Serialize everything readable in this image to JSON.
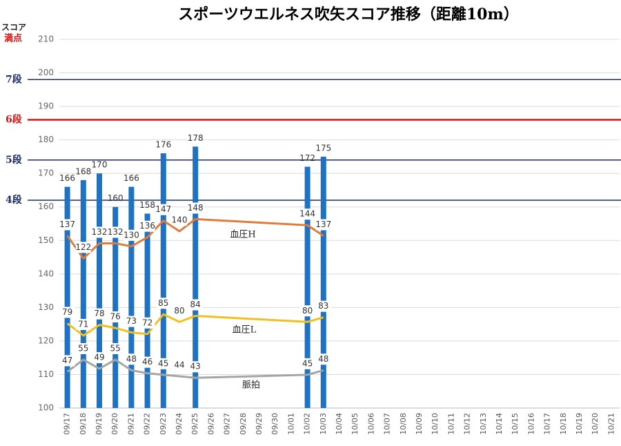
{
  "chart_data": {
    "type": "bar",
    "title": "スポーツウエルネス吹矢スコア推移（距離10m）",
    "y_axis_label": "スコア",
    "max_label": "満点",
    "categories": [
      "09/17",
      "09/18",
      "09/19",
      "09/20",
      "09/21",
      "09/22",
      "09/23",
      "09/24",
      "09/25",
      "09/26",
      "09/27",
      "09/28",
      "09/29",
      "09/30",
      "10/01",
      "10/02",
      "10/03",
      "10/04",
      "10/05",
      "10/06",
      "10/07",
      "10/08",
      "10/09",
      "10/10",
      "10/11",
      "10/12",
      "10/13",
      "10/14",
      "10/15",
      "10/16",
      "10/17",
      "10/18",
      "10/19",
      "10/20",
      "10/21"
    ],
    "values": [
      166,
      168,
      170,
      160,
      166,
      158,
      176,
      null,
      178,
      null,
      null,
      null,
      null,
      null,
      null,
      172,
      175,
      null,
      null,
      null,
      null,
      null,
      null,
      null,
      null,
      null,
      null,
      null,
      null,
      null,
      null,
      null,
      null,
      null,
      null
    ],
    "color": "#1f72c2",
    "ylim": [
      100,
      210
    ],
    "yticks": [
      100,
      110,
      120,
      130,
      140,
      150,
      160,
      170,
      180,
      190,
      200,
      210
    ],
    "y2lim": [
      23,
      267
    ],
    "grid": true,
    "span_gaps": true,
    "levels": [
      {
        "label": "7段",
        "value": 198,
        "color": "#1a2a6c"
      },
      {
        "label": "6段",
        "value": 186,
        "color": "#e01010"
      },
      {
        "label": "5段",
        "value": 174,
        "color": "#1a2a6c"
      },
      {
        "label": "4段",
        "value": 162,
        "color": "#1a2a6c"
      }
    ],
    "series": [
      {
        "name": "血圧H",
        "color": "#e07b39",
        "axis": "y2",
        "values": [
          137,
          122,
          132,
          132,
          130,
          136,
          147,
          140,
          148,
          null,
          null,
          null,
          null,
          null,
          null,
          144,
          137,
          null,
          null,
          null,
          null,
          null,
          null,
          null,
          null,
          null,
          null,
          null,
          null,
          null,
          null,
          null,
          null,
          null,
          null
        ]
      },
      {
        "name": "血圧L",
        "color": "#f2bf1f",
        "axis": "y2",
        "values": [
          79,
          71,
          78,
          76,
          73,
          72,
          85,
          80,
          84,
          null,
          null,
          null,
          null,
          null,
          null,
          80,
          83,
          null,
          null,
          null,
          null,
          null,
          null,
          null,
          null,
          null,
          null,
          null,
          null,
          null,
          null,
          null,
          null,
          null,
          null
        ]
      },
      {
        "name": "脈拍",
        "color": "#a5a5a5",
        "axis": "y2",
        "values": [
          47,
          55,
          49,
          55,
          48,
          46,
          45,
          44,
          43,
          null,
          null,
          null,
          null,
          null,
          null,
          45,
          48,
          null,
          null,
          null,
          null,
          null,
          null,
          null,
          null,
          null,
          null,
          null,
          null,
          null,
          null,
          null,
          null,
          null,
          null
        ]
      }
    ]
  }
}
